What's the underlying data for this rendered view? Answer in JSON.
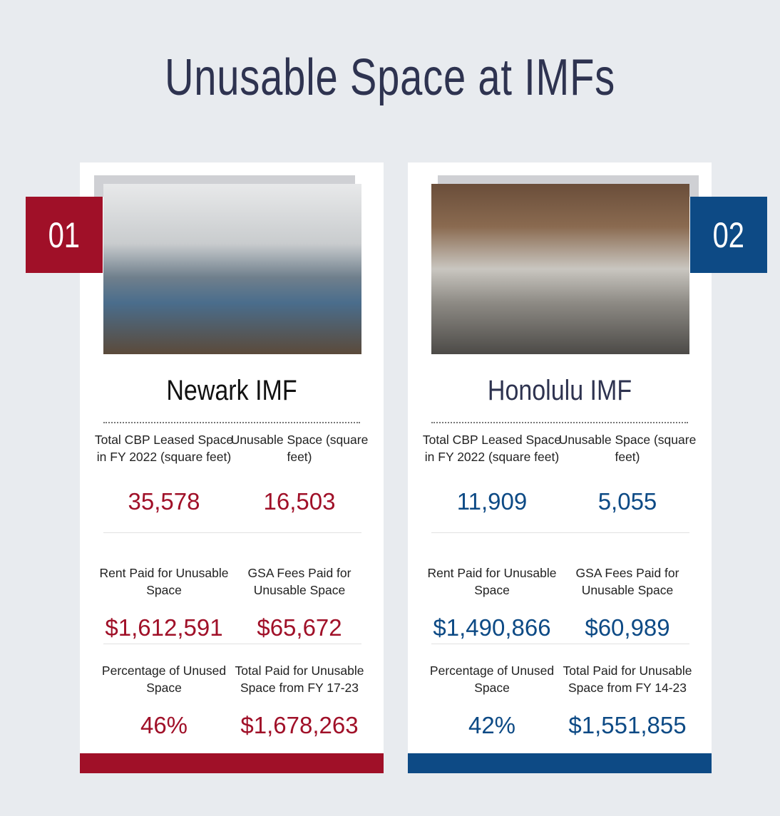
{
  "title": "Unusable Space at IMFs",
  "cards": [
    {
      "number": "01",
      "name": "Newark IMF",
      "color": "#a01028",
      "stats": [
        {
          "label": "Total CBP Leased Space in FY 2022 (square feet)",
          "value": "35,578"
        },
        {
          "label": "Unusable Space (square feet)",
          "value": "16,503"
        },
        {
          "label": "Rent Paid for Unusable Space",
          "value": "$1,612,591"
        },
        {
          "label": "GSA Fees Paid for Unusable Space",
          "value": "$65,672"
        },
        {
          "label": "Percentage of Unused Space",
          "value": "46%"
        },
        {
          "label": "Total Paid for Unusable Space from FY 17-23",
          "value": "$1,678,263"
        }
      ]
    },
    {
      "number": "02",
      "name": "Honolulu IMF",
      "color": "#0d4a85",
      "stats": [
        {
          "label": "Total CBP Leased Space in FY 2022 (square feet)",
          "value": "11,909"
        },
        {
          "label": "Unusable Space (square feet)",
          "value": "5,055"
        },
        {
          "label": "Rent Paid for Unusable Space",
          "value": "$1,490,866"
        },
        {
          "label": "GSA Fees Paid for Unusable Space",
          "value": "$60,989"
        },
        {
          "label": "Percentage of Unused Space",
          "value": "42%"
        },
        {
          "label": "Total Paid for Unusable Space from FY 14-23",
          "value": "$1,551,855"
        }
      ]
    }
  ]
}
